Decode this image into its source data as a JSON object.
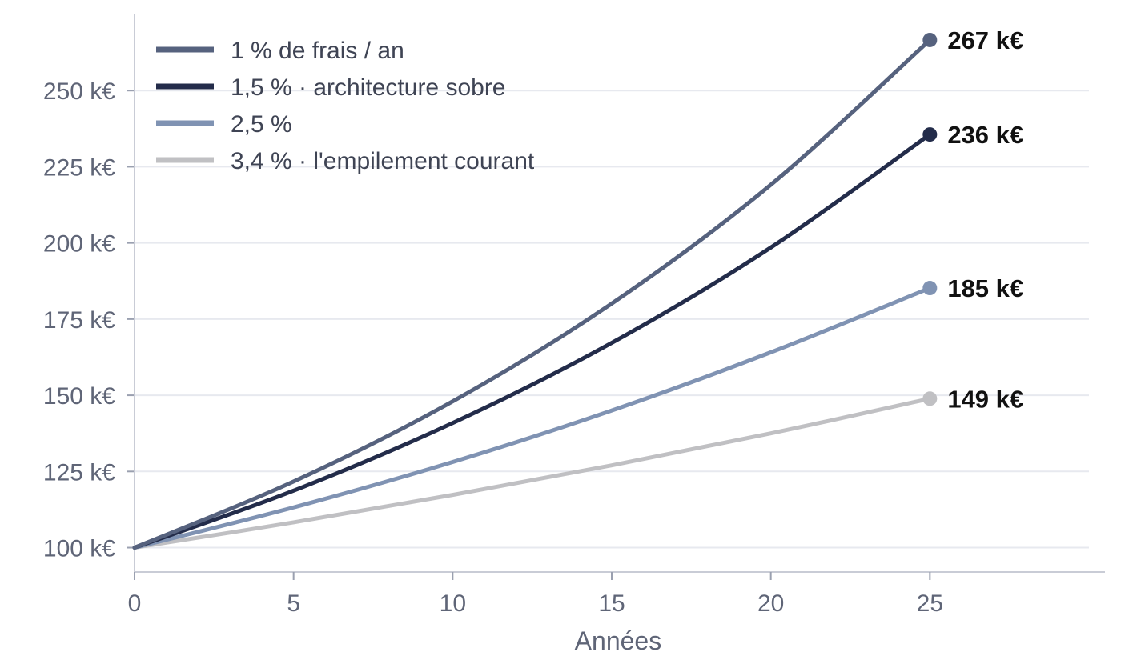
{
  "chart_data": {
    "type": "line",
    "title": "",
    "xlabel": "Années",
    "ylabel": "",
    "xlim": [
      0,
      30
    ],
    "ylim": [
      92,
      275
    ],
    "x_ticks": [
      0,
      5,
      10,
      15,
      20,
      25
    ],
    "x_tick_labels": [
      "0",
      "5",
      "10",
      "15",
      "20",
      "25"
    ],
    "y_ticks": [
      100,
      125,
      150,
      175,
      200,
      225,
      250
    ],
    "y_tick_labels": [
      "100 k€",
      "125 k€",
      "150 k€",
      "175 k€",
      "200 k€",
      "225 k€",
      "250 k€"
    ],
    "grid": "horizontal",
    "legend_position": "top-left",
    "x": [
      0,
      5,
      10,
      15,
      20,
      25
    ],
    "series": [
      {
        "name": "1 % de frais / an",
        "color": "#56627e",
        "values": [
          100,
          121.7,
          148.0,
          180.1,
          219.1,
          266.6
        ],
        "end_label": "267 k€"
      },
      {
        "name": "1,5 % · architecture sobre",
        "color": "#232c4a",
        "values": [
          100,
          118.7,
          140.9,
          167.2,
          198.5,
          235.6
        ],
        "end_label": "236 k€"
      },
      {
        "name": "2,5 %",
        "color": "#8093b3",
        "values": [
          100,
          113.2,
          128.1,
          145.0,
          164.1,
          185.2
        ],
        "end_label": "185 k€"
      },
      {
        "name": "3,4 % · l'empilement courant",
        "color": "#c0c0c3",
        "values": [
          100,
          108.3,
          117.3,
          127.0,
          137.5,
          148.9
        ],
        "end_label": "149 k€"
      }
    ]
  }
}
